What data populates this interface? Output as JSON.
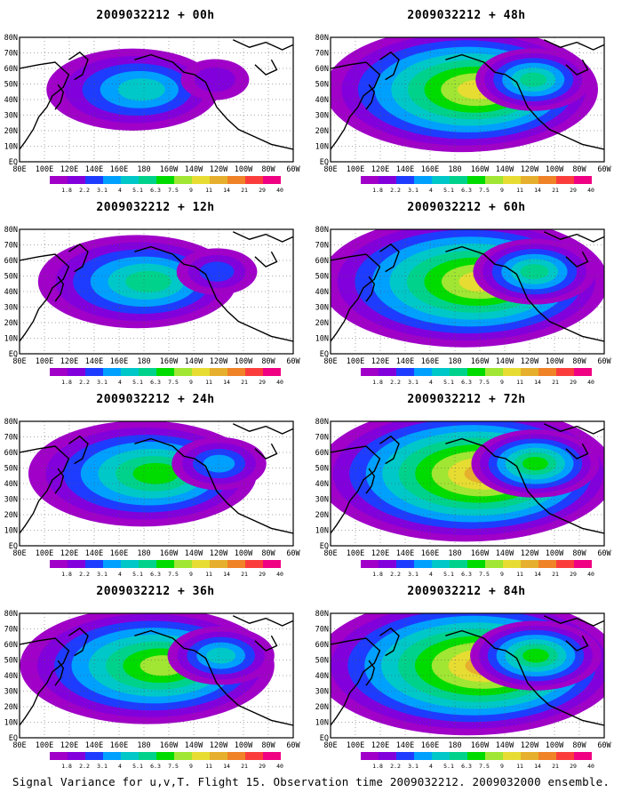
{
  "figure": {
    "caption": "Signal Variance for u,v,T. Flight 15. Observation time 2009032212. 2009032000 ensemble."
  },
  "axes": {
    "lat_labels": [
      "80N",
      "70N",
      "60N",
      "50N",
      "40N",
      "30N",
      "20N",
      "10N",
      "EQ"
    ],
    "lon_labels": [
      "80E",
      "100E",
      "120E",
      "140E",
      "160E",
      "180",
      "160W",
      "140W",
      "120W",
      "100W",
      "80W",
      "60W"
    ]
  },
  "colorbar": {
    "labels": [
      "1.8",
      "2.2",
      "3.1",
      "4",
      "5.1",
      "6.3",
      "7.5",
      "9",
      "11",
      "14",
      "21",
      "29",
      "40"
    ],
    "colors": [
      "#a000c8",
      "#8200dc",
      "#1e3cff",
      "#00a0ff",
      "#00c8c8",
      "#00d28c",
      "#00dc00",
      "#a0e632",
      "#e6dc32",
      "#e6af2d",
      "#f08228",
      "#fa3c3c",
      "#f00082"
    ]
  },
  "panels": [
    {
      "title": "2009032212 + 00h",
      "intensity": 0.28
    },
    {
      "title": "2009032212 + 12h",
      "intensity": 0.42
    },
    {
      "title": "2009032212 + 24h",
      "intensity": 0.58
    },
    {
      "title": "2009032212 + 36h",
      "intensity": 0.72
    },
    {
      "title": "2009032212 + 48h",
      "intensity": 0.82
    },
    {
      "title": "2009032212 + 60h",
      "intensity": 0.9
    },
    {
      "title": "2009032212 + 72h",
      "intensity": 0.96
    },
    {
      "title": "2009032212 + 84h",
      "intensity": 1.0
    }
  ]
}
